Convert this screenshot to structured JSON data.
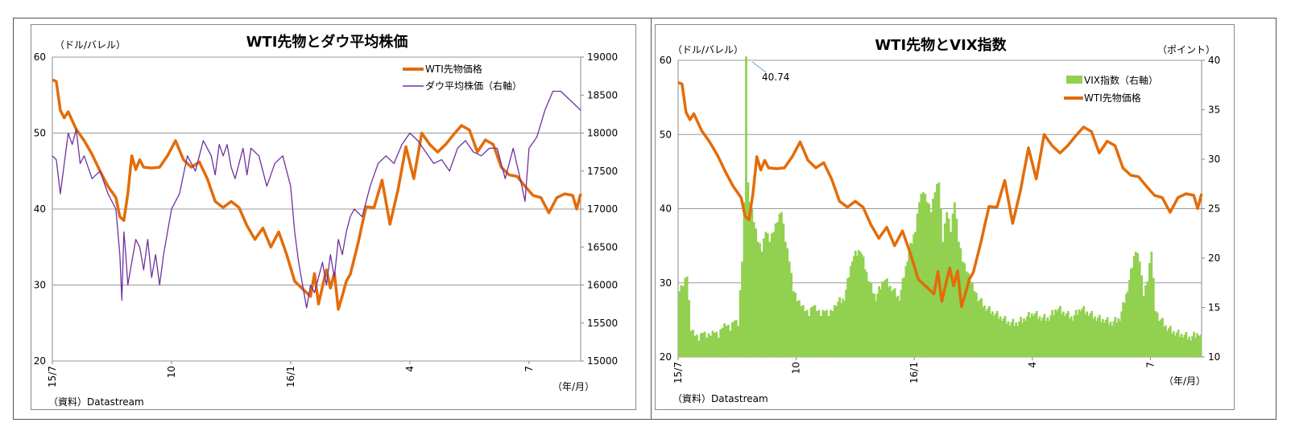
{
  "chart_data": [
    {
      "type": "line",
      "title": "WTI先物とダウ平均株価",
      "ylabel_left": "（ドル/バレル）",
      "xlabel": "（年/月）",
      "source": "（資料）Datastream",
      "ylim_left": [
        20,
        60
      ],
      "ylim_right": [
        15000,
        19000
      ],
      "yticks_left": [
        "20",
        "30",
        "40",
        "50",
        "60"
      ],
      "yticks_right": [
        "15000",
        "15500",
        "16000",
        "16500",
        "17000",
        "17500",
        "18000",
        "18500",
        "19000"
      ],
      "xticks": [
        {
          "label": "15/7",
          "t": 0
        },
        {
          "label": "10",
          "t": 3
        },
        {
          "label": "16/1",
          "t": 6
        },
        {
          "label": "4",
          "t": 9
        },
        {
          "label": "7",
          "t": 12
        }
      ],
      "xlim": [
        0,
        13.3
      ],
      "series": [
        {
          "name": "WTI先物価格",
          "axis": "left",
          "color": "#E36C09",
          "x": [
            0,
            0.1,
            0.2,
            0.3,
            0.4,
            0.6,
            0.8,
            1.0,
            1.2,
            1.4,
            1.6,
            1.7,
            1.8,
            1.9,
            2.0,
            2.1,
            2.2,
            2.3,
            2.5,
            2.7,
            2.9,
            3.1,
            3.3,
            3.5,
            3.7,
            3.9,
            4.1,
            4.3,
            4.5,
            4.7,
            4.9,
            5.1,
            5.3,
            5.5,
            5.7,
            5.9,
            6.1,
            6.3,
            6.5,
            6.6,
            6.7,
            6.8,
            6.9,
            7.0,
            7.1,
            7.2,
            7.3,
            7.4,
            7.5,
            7.6,
            7.7,
            7.8,
            7.9,
            8.1,
            8.3,
            8.5,
            8.7,
            8.9,
            9.1,
            9.3,
            9.5,
            9.7,
            9.9,
            10.1,
            10.3,
            10.5,
            10.7,
            10.9,
            11.1,
            11.3,
            11.5,
            11.7,
            11.9,
            12.1,
            12.3,
            12.5,
            12.7,
            12.9,
            13.1,
            13.2,
            13.3
          ],
          "values": [
            57,
            56.8,
            53,
            52,
            52.8,
            50.5,
            49,
            47.2,
            45,
            43,
            41.5,
            39,
            38.5,
            42,
            47,
            45.2,
            46.5,
            45.5,
            45.4,
            45.5,
            47,
            49,
            46.5,
            45.5,
            46.2,
            44,
            41,
            40.2,
            41,
            40.2,
            37.8,
            36,
            37.5,
            35,
            37,
            34,
            30.5,
            29.5,
            28.5,
            31.5,
            27.5,
            29.8,
            32,
            29.6,
            31.6,
            26.8,
            28.6,
            30.5,
            31.4,
            33.5,
            35.6,
            38,
            40.3,
            40.2,
            43.8,
            38,
            42.5,
            48.2,
            44,
            50,
            48.5,
            47.5,
            48.5,
            49.8,
            51,
            50.4,
            47.5,
            49.1,
            48.5,
            45.5,
            44.5,
            44.3,
            43,
            41.8,
            41.5,
            39.5,
            41.5,
            42,
            41.8,
            40,
            42
          ]
        },
        {
          "name": "ダウ平均株価（右軸）",
          "axis": "right",
          "color": "#7030A0",
          "x": [
            0,
            0.1,
            0.2,
            0.3,
            0.4,
            0.5,
            0.6,
            0.7,
            0.8,
            1.0,
            1.2,
            1.4,
            1.5,
            1.6,
            1.7,
            1.75,
            1.8,
            1.85,
            1.9,
            2.0,
            2.1,
            2.2,
            2.3,
            2.4,
            2.5,
            2.6,
            2.7,
            2.8,
            2.9,
            3.0,
            3.2,
            3.4,
            3.6,
            3.8,
            4.0,
            4.1,
            4.2,
            4.3,
            4.4,
            4.5,
            4.6,
            4.7,
            4.8,
            4.9,
            5.0,
            5.2,
            5.4,
            5.6,
            5.8,
            6.0,
            6.1,
            6.2,
            6.3,
            6.4,
            6.5,
            6.6,
            6.7,
            6.8,
            6.9,
            7.0,
            7.1,
            7.2,
            7.3,
            7.4,
            7.5,
            7.6,
            7.8,
            8.0,
            8.2,
            8.4,
            8.6,
            8.8,
            9.0,
            9.2,
            9.4,
            9.6,
            9.8,
            10.0,
            10.2,
            10.4,
            10.6,
            10.8,
            11.0,
            11.2,
            11.4,
            11.6,
            11.8,
            11.9,
            12.0,
            12.2,
            12.4,
            12.6,
            12.8,
            13.0,
            13.2,
            13.3
          ],
          "values": [
            17700,
            17650,
            17200,
            17600,
            18000,
            17850,
            18050,
            17600,
            17700,
            17400,
            17500,
            17200,
            17100,
            17000,
            16400,
            15800,
            16700,
            16400,
            16000,
            16300,
            16600,
            16500,
            16200,
            16600,
            16100,
            16400,
            16000,
            16400,
            16700,
            17000,
            17200,
            17700,
            17500,
            17900,
            17700,
            17450,
            17850,
            17700,
            17850,
            17550,
            17400,
            17600,
            17800,
            17450,
            17800,
            17700,
            17300,
            17600,
            17700,
            17300,
            16700,
            16300,
            16000,
            15700,
            16000,
            15900,
            16100,
            16300,
            16000,
            16400,
            16100,
            16600,
            16400,
            16700,
            16900,
            17000,
            16900,
            17300,
            17600,
            17700,
            17600,
            17850,
            18000,
            17900,
            17750,
            17600,
            17650,
            17500,
            17800,
            17900,
            17750,
            17700,
            17800,
            17800,
            17400,
            17800,
            17350,
            17100,
            17800,
            17950,
            18300,
            18550,
            18550,
            18450,
            18350,
            18300
          ]
        }
      ]
    },
    {
      "type": "bar+line",
      "title": "WTI先物とVIX指数",
      "ylabel_left": "（ドル/バレル）",
      "ylabel_right": "（ポイント）",
      "xlabel": "（年/月）",
      "source": "（資料）Datastream",
      "annotation": "40.74",
      "ylim_left": [
        20,
        60
      ],
      "ylim_right": [
        10,
        40
      ],
      "yticks_left": [
        "20",
        "30",
        "40",
        "50",
        "60"
      ],
      "yticks_right": [
        "10",
        "15",
        "20",
        "25",
        "30",
        "35",
        "40"
      ],
      "xticks": [
        {
          "label": "15/7",
          "t": 0
        },
        {
          "label": "10",
          "t": 3
        },
        {
          "label": "16/1",
          "t": 6
        },
        {
          "label": "4",
          "t": 9
        },
        {
          "label": "7",
          "t": 12
        }
      ],
      "xlim": [
        0,
        13.3
      ],
      "series": [
        {
          "name": "VIX指数（右軸）",
          "axis": "right",
          "type": "bar",
          "color": "#92D050",
          "x": [
            0,
            0.1,
            0.2,
            0.3,
            0.4,
            0.5,
            0.6,
            0.7,
            0.8,
            0.9,
            1.0,
            1.1,
            1.2,
            1.3,
            1.4,
            1.5,
            1.6,
            1.65,
            1.7,
            1.75,
            1.8,
            1.9,
            2.0,
            2.1,
            2.2,
            2.3,
            2.4,
            2.5,
            2.6,
            2.7,
            2.8,
            2.9,
            3.0,
            3.1,
            3.2,
            3.3,
            3.4,
            3.5,
            3.6,
            3.7,
            3.8,
            3.9,
            4.0,
            4.2,
            4.4,
            4.6,
            4.8,
            5.0,
            5.2,
            5.4,
            5.6,
            5.8,
            6.0,
            6.1,
            6.2,
            6.3,
            6.4,
            6.5,
            6.6,
            6.7,
            6.8,
            6.9,
            7.0,
            7.1,
            7.2,
            7.3,
            7.4,
            7.5,
            7.6,
            7.8,
            8.0,
            8.2,
            8.4,
            8.6,
            8.8,
            9.0,
            9.2,
            9.4,
            9.6,
            9.8,
            10.0,
            10.2,
            10.4,
            10.6,
            10.8,
            11.0,
            11.2,
            11.4,
            11.6,
            11.7,
            11.8,
            11.9,
            12.0,
            12.1,
            12.2,
            12.4,
            12.6,
            12.8,
            13.0,
            13.2,
            13.3
          ],
          "values": [
            17,
            17.5,
            18.5,
            13,
            12.5,
            12,
            12.8,
            12.3,
            12.5,
            12.8,
            12.3,
            13.3,
            13.5,
            13,
            14,
            13.5,
            20,
            26,
            40.74,
            28,
            26,
            24,
            22,
            21,
            23,
            22,
            23,
            24,
            25,
            22,
            20,
            17,
            16,
            15.5,
            15,
            14.5,
            15.5,
            15,
            14.5,
            15,
            14.5,
            15,
            15.5,
            16,
            20,
            21,
            18,
            16,
            18,
            17,
            16,
            20,
            23,
            26,
            27,
            26,
            25,
            27,
            28,
            22,
            25,
            23,
            26,
            22,
            20,
            19,
            18,
            17,
            16,
            15,
            14.5,
            14,
            13.5,
            13.5,
            14,
            14.5,
            14,
            14,
            15,
            14.5,
            14,
            15,
            14.5,
            14,
            13.8,
            13.5,
            14,
            17,
            21,
            20,
            16.5,
            18,
            21,
            15,
            14,
            13,
            12.5,
            12.3,
            12,
            12.5,
            12
          ]
        },
        {
          "name": "WTI先物価格",
          "axis": "left",
          "type": "line",
          "color": "#E36C09",
          "x": [
            0,
            0.1,
            0.2,
            0.3,
            0.4,
            0.6,
            0.8,
            1.0,
            1.2,
            1.4,
            1.6,
            1.7,
            1.8,
            1.9,
            2.0,
            2.1,
            2.2,
            2.3,
            2.5,
            2.7,
            2.9,
            3.1,
            3.3,
            3.5,
            3.7,
            3.9,
            4.1,
            4.3,
            4.5,
            4.7,
            4.9,
            5.1,
            5.3,
            5.5,
            5.7,
            5.9,
            6.1,
            6.3,
            6.5,
            6.6,
            6.7,
            6.8,
            6.9,
            7.0,
            7.1,
            7.2,
            7.3,
            7.4,
            7.5,
            7.6,
            7.7,
            7.8,
            7.9,
            8.1,
            8.3,
            8.5,
            8.7,
            8.9,
            9.1,
            9.3,
            9.5,
            9.7,
            9.9,
            10.1,
            10.3,
            10.5,
            10.7,
            10.9,
            11.1,
            11.3,
            11.5,
            11.7,
            11.9,
            12.1,
            12.3,
            12.5,
            12.7,
            12.9,
            13.1,
            13.2,
            13.3
          ],
          "values": [
            57,
            56.8,
            53,
            52,
            52.8,
            50.5,
            49,
            47.2,
            45,
            43,
            41.5,
            39,
            38.5,
            42,
            47,
            45.2,
            46.5,
            45.5,
            45.4,
            45.5,
            47,
            49,
            46.5,
            45.5,
            46.2,
            44,
            41,
            40.2,
            41,
            40.2,
            37.8,
            36,
            37.5,
            35,
            37,
            34,
            30.5,
            29.5,
            28.5,
            31.5,
            27.5,
            29.8,
            32,
            29.6,
            31.6,
            26.8,
            28.6,
            30.5,
            31.4,
            33.5,
            35.6,
            38,
            40.3,
            40.2,
            43.8,
            38,
            42.5,
            48.2,
            44,
            50,
            48.5,
            47.5,
            48.5,
            49.8,
            51,
            50.4,
            47.5,
            49.1,
            48.5,
            45.5,
            44.5,
            44.3,
            43,
            41.8,
            41.5,
            39.5,
            41.5,
            42,
            41.8,
            40,
            42
          ]
        }
      ]
    }
  ]
}
